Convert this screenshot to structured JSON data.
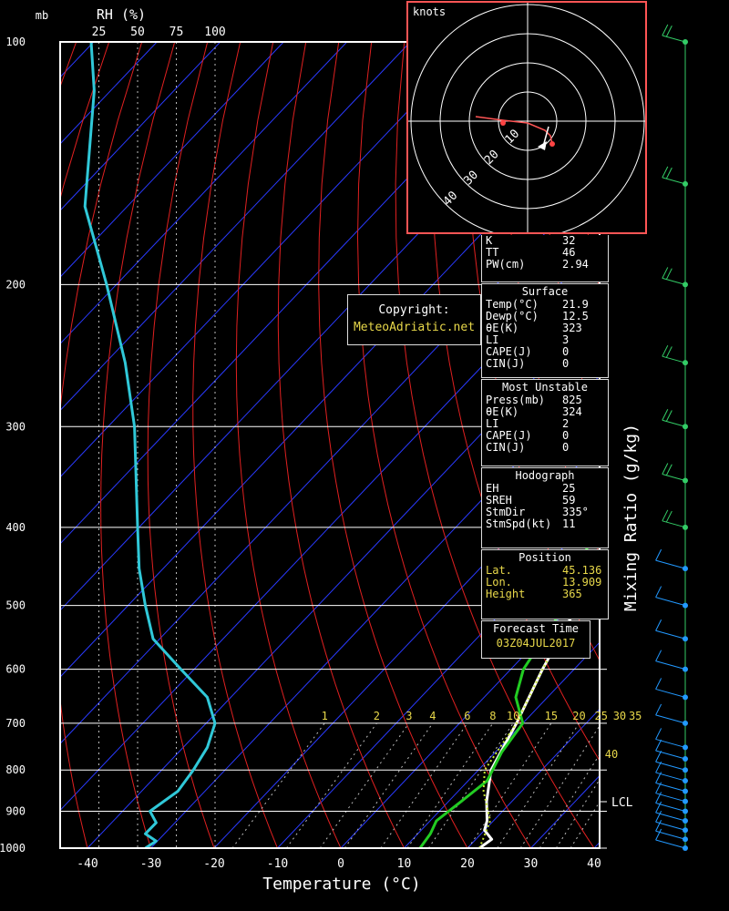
{
  "header": {
    "pressure_unit": "mb",
    "rh_label": "RH (%)",
    "rh_ticks": [
      "25",
      "50",
      "75",
      "100"
    ]
  },
  "chart_data": {
    "type": "line",
    "title": "",
    "xlabel": "Temperature (°C)",
    "ylabel": "mb",
    "right_label": "Mixing Ratio (g/kg)",
    "x_ticks": [
      -40,
      -30,
      -20,
      -10,
      0,
      10,
      20,
      30,
      40
    ],
    "y_ticks": [
      100,
      200,
      300,
      400,
      500,
      600,
      700,
      800,
      900,
      1000
    ],
    "xlim": [
      -44,
      40
    ],
    "ylim": [
      1000,
      100
    ],
    "mixing_ratio_labels": [
      "1",
      "2",
      "3",
      "4",
      "6",
      "8",
      "10",
      "15",
      "20",
      "25",
      "30",
      "35",
      "40"
    ],
    "lcl_label": "LCL",
    "series": [
      {
        "name": "Temperature",
        "color": "#ffffff",
        "points": [
          [
            21.9,
            1000
          ],
          [
            22.5,
            975
          ],
          [
            20,
            950
          ],
          [
            19,
            925
          ],
          [
            16,
            875
          ],
          [
            12,
            800
          ],
          [
            9,
            700
          ],
          [
            5,
            600
          ],
          [
            1,
            500
          ],
          [
            -4,
            400
          ],
          [
            -12,
            300
          ],
          [
            -18,
            250
          ],
          [
            -12,
            200
          ],
          [
            -3,
            160
          ],
          [
            1,
            130
          ],
          [
            4,
            100
          ]
        ]
      },
      {
        "name": "Dewpoint",
        "color": "#22cc22",
        "points": [
          [
            12.5,
            1000
          ],
          [
            12,
            960
          ],
          [
            11,
            925
          ],
          [
            12,
            875
          ],
          [
            13,
            825
          ],
          [
            11,
            760
          ],
          [
            10,
            700
          ],
          [
            5,
            650
          ],
          [
            2,
            600
          ],
          [
            -1,
            500
          ],
          [
            -8,
            400
          ],
          [
            -17,
            300
          ],
          [
            -20,
            250
          ],
          [
            -23,
            200
          ],
          [
            -27,
            150
          ],
          [
            -23,
            100
          ]
        ]
      },
      {
        "name": "Parcel",
        "color": "#c8e832",
        "points": [
          [
            21.9,
            1000
          ],
          [
            19.5,
            925
          ],
          [
            14,
            850
          ],
          [
            11,
            800
          ],
          [
            9,
            700
          ],
          [
            5,
            600
          ],
          [
            1,
            500
          ],
          [
            -3,
            400
          ],
          [
            -11,
            300
          ],
          [
            -17,
            250
          ],
          [
            -27,
            200
          ],
          [
            -37,
            150
          ],
          [
            -43,
            120
          ]
        ]
      },
      {
        "name": "RH profile",
        "color": "#30c8d8",
        "rh_points": [
          [
            20,
            100
          ],
          [
            22,
            115
          ],
          [
            16,
            160
          ],
          [
            30,
            200
          ],
          [
            42,
            250
          ],
          [
            48,
            300
          ],
          [
            50,
            400
          ],
          [
            51,
            450
          ],
          [
            55,
            500
          ],
          [
            60,
            550
          ],
          [
            78,
            600
          ],
          [
            95,
            650
          ],
          [
            100,
            700
          ],
          [
            95,
            750
          ],
          [
            86,
            800
          ],
          [
            76,
            850
          ],
          [
            58,
            900
          ],
          [
            62,
            930
          ],
          [
            55,
            960
          ],
          [
            62,
            980
          ],
          [
            55,
            1000
          ]
        ]
      }
    ]
  },
  "indices": {
    "rows": [
      {
        "label": "K",
        "value": "32"
      },
      {
        "label": "TT",
        "value": "46"
      },
      {
        "label": "PW(cm)",
        "value": "2.94"
      }
    ]
  },
  "surface": {
    "title": "Surface",
    "rows": [
      {
        "label": "Temp(°C)",
        "value": "21.9"
      },
      {
        "label": "Dewp(°C)",
        "value": "12.5"
      },
      {
        "label": "θE(K)",
        "value": "323"
      },
      {
        "label": "LI",
        "value": "3"
      },
      {
        "label": "CAPE(J)",
        "value": "0"
      },
      {
        "label": "CIN(J)",
        "value": "0"
      }
    ]
  },
  "most_unstable": {
    "title": "Most Unstable",
    "rows": [
      {
        "label": "Press(mb)",
        "value": "825"
      },
      {
        "label": "θE(K)",
        "value": "324"
      },
      {
        "label": "LI",
        "value": "2"
      },
      {
        "label": "CAPE(J)",
        "value": "0"
      },
      {
        "label": "CIN(J)",
        "value": "0"
      }
    ]
  },
  "hodograph_stats": {
    "title": "Hodograph",
    "rows": [
      {
        "label": "EH",
        "value": "25"
      },
      {
        "label": "SREH",
        "value": "59"
      },
      {
        "label": "StmDir",
        "value": "335°"
      },
      {
        "label": "StmSpd(kt)",
        "value": "11"
      }
    ]
  },
  "position": {
    "title": "Position",
    "rows": [
      {
        "label": "Lat.",
        "value": "45.136"
      },
      {
        "label": "Lon.",
        "value": "13.909"
      },
      {
        "label": "Height",
        "value": "365"
      }
    ]
  },
  "forecast": {
    "title": "Forecast Time",
    "value": "03Z04JUL2017"
  },
  "credit": {
    "line1": "Copyright:",
    "line2": "MeteoAdriatic.net"
  },
  "hodograph": {
    "unit": "knots",
    "ring_labels": [
      "10",
      "20",
      "30",
      "40"
    ],
    "colors": {
      "frame": "#ff5555",
      "rings": "#ffffff"
    }
  },
  "colors": {
    "isotherm": "#2a3aff",
    "dry_adiabat": "#e02020",
    "isobar": "#ffffff",
    "mixing_ratio": "#bbbbbb",
    "wind_upper": "#33cc66",
    "wind_lower": "#2299ff"
  }
}
